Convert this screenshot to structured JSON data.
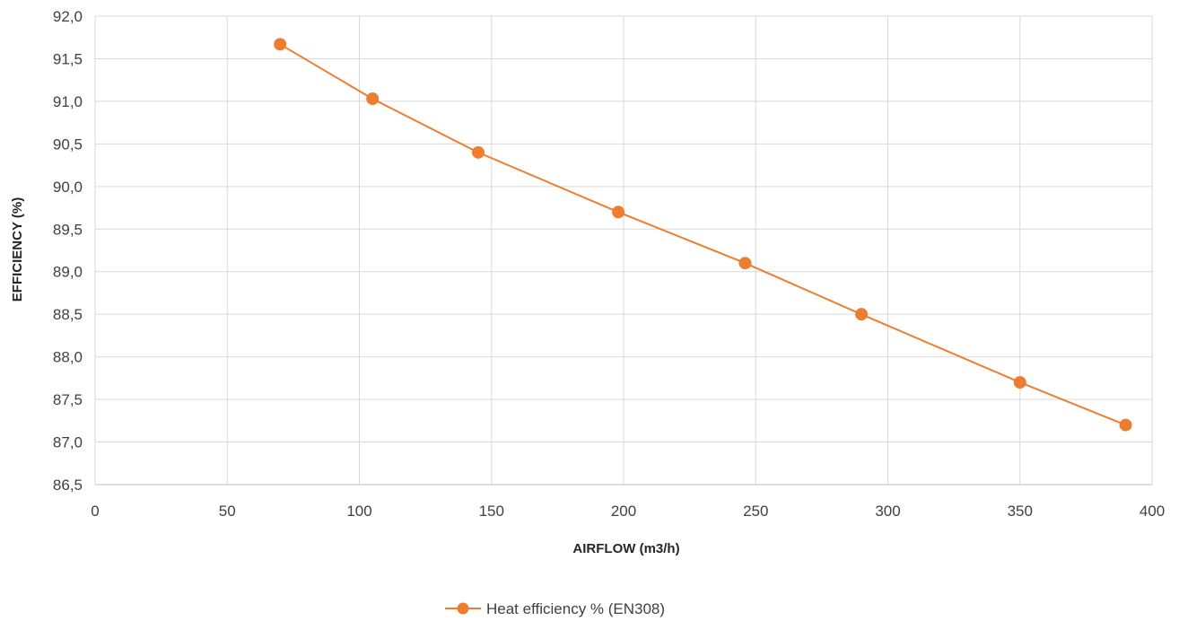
{
  "chart_data": {
    "type": "line",
    "xlabel": "AIRFLOW (m3/h)",
    "ylabel": "EFFICIENCY (%)",
    "xlim": [
      0,
      400
    ],
    "ylim": [
      86.5,
      92.0
    ],
    "x_ticks": [
      0,
      50,
      100,
      150,
      200,
      250,
      300,
      350,
      400
    ],
    "y_ticks": [
      "86,5",
      "87,0",
      "87,5",
      "88,0",
      "88,5",
      "89,0",
      "89,5",
      "90,0",
      "90,5",
      "91,0",
      "91,5",
      "92,0"
    ],
    "grid": true,
    "legend_position": "bottom",
    "series": [
      {
        "name": "Heat efficiency % (EN308)",
        "color": "#ED7D31",
        "x": [
          70,
          105,
          145,
          198,
          246,
          290,
          350,
          390
        ],
        "y": [
          91.67,
          91.03,
          90.4,
          89.7,
          89.1,
          88.5,
          87.7,
          87.2
        ]
      }
    ]
  }
}
